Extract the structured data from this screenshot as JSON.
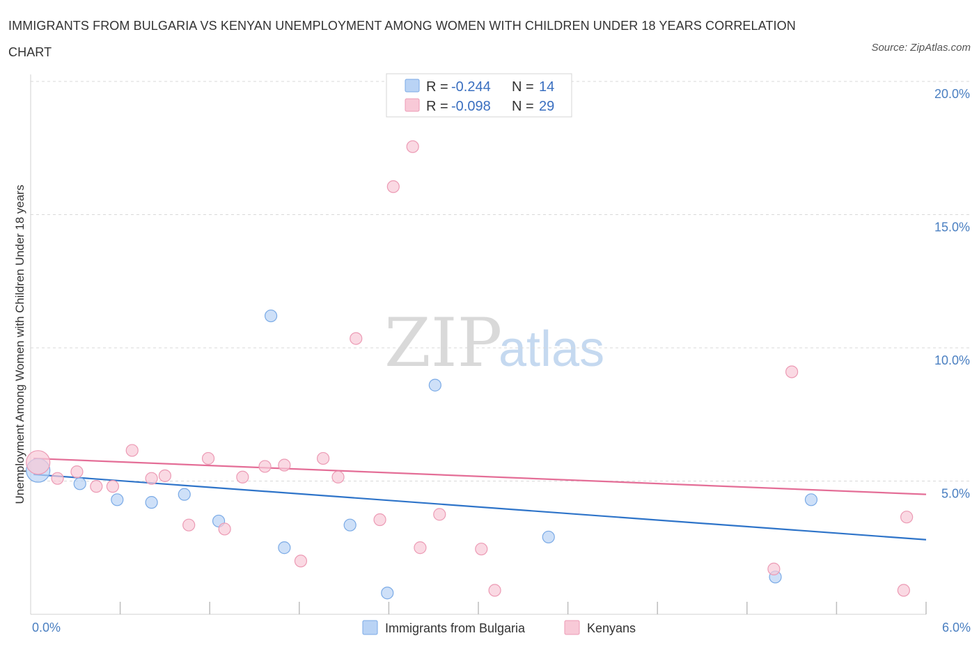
{
  "title": "IMMIGRANTS FROM BULGARIA VS KENYAN UNEMPLOYMENT AMONG WOMEN WITH CHILDREN UNDER 18 YEARS CORRELATION CHART",
  "source": "Source: ZipAtlas.com",
  "watermark": {
    "zip": "ZIP",
    "atlas": "atlas"
  },
  "colors": {
    "blue_fill": "#b9d3f5",
    "blue_stroke": "#7aaae6",
    "blue_line": "#2e74c9",
    "pink_fill": "#f8c9d7",
    "pink_stroke": "#ec9ab4",
    "pink_line": "#e46e97",
    "grid": "#d8d8d8",
    "tick_text": "#4a7fc1"
  },
  "legend": {
    "rows": [
      {
        "r_label": "R = ",
        "r_value": "-0.244",
        "n_label": "N = ",
        "n_value": "14"
      },
      {
        "r_label": "R = ",
        "r_value": "-0.098",
        "n_label": "N = ",
        "n_value": "29"
      }
    ]
  },
  "chart_data": {
    "type": "scatter",
    "title": "IMMIGRANTS FROM BULGARIA VS KENYAN UNEMPLOYMENT AMONG WOMEN WITH CHILDREN UNDER 18 YEARS CORRELATION CHART",
    "xlabel": "",
    "ylabel": "Unemployment Among Women with Children Under 18 years",
    "xlim": [
      0,
      6
    ],
    "ylim": [
      0,
      20
    ],
    "x_tick_labels": [
      "0.0%",
      "6.0%"
    ],
    "y_ticks": [
      5,
      10,
      15,
      20
    ],
    "y_tick_labels": [
      "5.0%",
      "10.0%",
      "15.0%",
      "20.0%"
    ],
    "grid": "horizontal dashed",
    "legend_position": "top-center",
    "series": [
      {
        "name": "Immigrants from Bulgaria",
        "color": "#b9d3f5",
        "points": [
          {
            "x": 0.05,
            "y": 5.4,
            "big": true
          },
          {
            "x": 0.33,
            "y": 4.9
          },
          {
            "x": 0.58,
            "y": 4.3
          },
          {
            "x": 0.81,
            "y": 4.2
          },
          {
            "x": 1.03,
            "y": 4.5
          },
          {
            "x": 1.26,
            "y": 3.5
          },
          {
            "x": 1.61,
            "y": 11.2
          },
          {
            "x": 1.7,
            "y": 2.5
          },
          {
            "x": 2.14,
            "y": 3.35
          },
          {
            "x": 2.39,
            "y": 0.8
          },
          {
            "x": 2.71,
            "y": 8.6
          },
          {
            "x": 3.47,
            "y": 2.9
          },
          {
            "x": 4.99,
            "y": 1.4
          },
          {
            "x": 5.23,
            "y": 4.3
          }
        ],
        "trend": {
          "x": [
            0.02,
            6.0
          ],
          "y": [
            5.25,
            2.8
          ]
        }
      },
      {
        "name": "Kenyans",
        "color": "#f8c9d7",
        "points": [
          {
            "x": 0.05,
            "y": 5.7,
            "big": true
          },
          {
            "x": 0.18,
            "y": 5.1
          },
          {
            "x": 0.31,
            "y": 5.35
          },
          {
            "x": 0.44,
            "y": 4.8
          },
          {
            "x": 0.55,
            "y": 4.8
          },
          {
            "x": 0.68,
            "y": 6.15
          },
          {
            "x": 0.81,
            "y": 5.1
          },
          {
            "x": 0.9,
            "y": 5.2
          },
          {
            "x": 1.06,
            "y": 3.35
          },
          {
            "x": 1.19,
            "y": 5.85
          },
          {
            "x": 1.3,
            "y": 3.2
          },
          {
            "x": 1.42,
            "y": 5.15
          },
          {
            "x": 1.57,
            "y": 5.55
          },
          {
            "x": 1.7,
            "y": 5.6
          },
          {
            "x": 1.81,
            "y": 2.0
          },
          {
            "x": 1.96,
            "y": 5.85
          },
          {
            "x": 2.06,
            "y": 5.15
          },
          {
            "x": 2.18,
            "y": 10.35
          },
          {
            "x": 2.34,
            "y": 3.55
          },
          {
            "x": 2.43,
            "y": 16.05
          },
          {
            "x": 2.56,
            "y": 17.55
          },
          {
            "x": 2.61,
            "y": 2.5
          },
          {
            "x": 2.74,
            "y": 3.75
          },
          {
            "x": 3.02,
            "y": 2.45
          },
          {
            "x": 3.11,
            "y": 0.9
          },
          {
            "x": 4.98,
            "y": 1.7
          },
          {
            "x": 5.1,
            "y": 9.1
          },
          {
            "x": 5.87,
            "y": 3.65
          },
          {
            "x": 5.85,
            "y": 0.9
          }
        ],
        "trend": {
          "x": [
            0.02,
            6.0
          ],
          "y": [
            5.85,
            4.5
          ]
        }
      }
    ]
  }
}
